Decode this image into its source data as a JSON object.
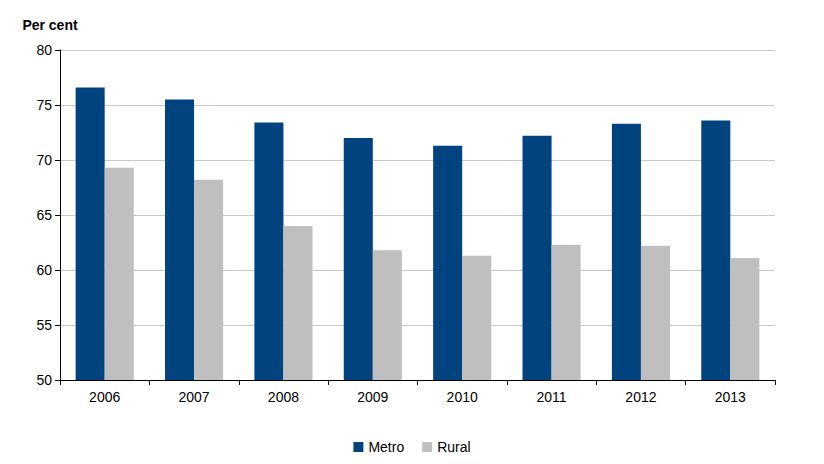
{
  "chart_data": {
    "type": "bar",
    "y_label": "Per cent",
    "categories": [
      "2006",
      "2007",
      "2008",
      "2009",
      "2010",
      "2011",
      "2012",
      "2013"
    ],
    "series": [
      {
        "name": "Metro",
        "color": "#00437e",
        "values": [
          76.6,
          75.5,
          73.4,
          72.0,
          71.3,
          72.2,
          73.3,
          73.6
        ]
      },
      {
        "name": "Rural",
        "color": "#bfbfbf",
        "values": [
          69.3,
          68.2,
          64.0,
          61.8,
          61.3,
          62.3,
          62.2,
          61.1
        ]
      }
    ],
    "ylim": [
      50,
      80
    ],
    "yticks": [
      50,
      55,
      60,
      65,
      70,
      75,
      80
    ],
    "grid": true,
    "legend": "bottom"
  }
}
